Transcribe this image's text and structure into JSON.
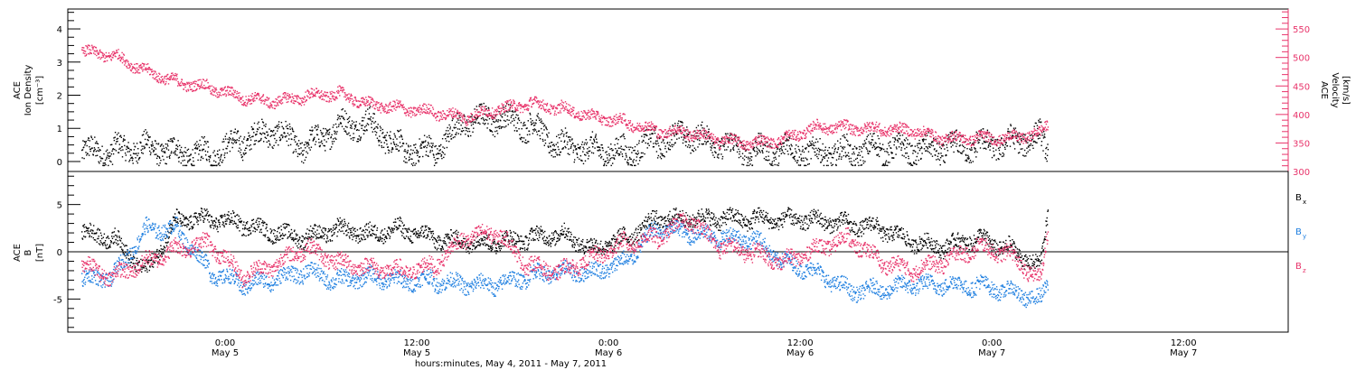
{
  "chart_data": [
    {
      "type": "scatter",
      "panel": "top",
      "ylabel_left": [
        "ACE",
        "Ion Density",
        "[cm⁻³]"
      ],
      "ylabel_right": [
        "ACE",
        "Velocity",
        "[km/s]"
      ],
      "y_left_lim": [
        -0.3,
        4.6
      ],
      "y_left_ticks": [
        "0",
        "1",
        "2",
        "3",
        "4"
      ],
      "y_right_lim": [
        300,
        585
      ],
      "y_right_ticks": [
        "300",
        "350",
        "400",
        "450",
        "500",
        "550"
      ],
      "right_axis_color": "#e8336a",
      "series": [
        {
          "axis": "left",
          "color": "#000000",
          "x_hours": [
            0,
            2,
            4,
            6,
            8,
            10,
            12,
            14,
            16,
            18,
            20,
            22,
            24,
            26,
            28,
            30,
            32,
            34,
            36,
            38,
            40,
            42,
            44,
            46,
            48,
            50,
            52,
            54,
            56,
            58,
            60,
            60.5
          ],
          "values": [
            0.25,
            0.35,
            0.5,
            0.3,
            0.2,
            0.6,
            0.9,
            0.4,
            1.1,
            1.2,
            0.4,
            0.3,
            1.2,
            1.3,
            1.1,
            0.5,
            0.4,
            0.3,
            0.6,
            0.8,
            0.5,
            0.3,
            0.4,
            0.3,
            0.3,
            0.4,
            0.3,
            0.4,
            0.5,
            0.6,
            0.8,
            0.3
          ]
        },
        {
          "axis": "right",
          "color": "#e8336a",
          "x_hours": [
            0,
            2,
            4,
            6,
            8,
            10,
            12,
            14,
            16,
            18,
            20,
            22,
            24,
            26,
            28,
            30,
            32,
            34,
            36,
            38,
            40,
            42,
            44,
            46,
            48,
            50,
            52,
            54,
            56,
            58,
            60,
            60.5
          ],
          "values": [
            510,
            505,
            478,
            458,
            448,
            430,
            422,
            432,
            438,
            420,
            412,
            405,
            395,
            408,
            420,
            412,
            398,
            388,
            372,
            368,
            355,
            350,
            358,
            380,
            378,
            375,
            372,
            358,
            360,
            360,
            368,
            388
          ]
        }
      ]
    },
    {
      "type": "scatter",
      "panel": "bottom",
      "ylabel": [
        "ACE",
        "B",
        "[nT]"
      ],
      "ylim": [
        -8.5,
        8.5
      ],
      "yticks": [
        "-5",
        "0",
        "5"
      ],
      "zero_line": true,
      "x_ticks": [
        {
          "hours": 9,
          "label": "0:00",
          "sub": "May 5"
        },
        {
          "hours": 21,
          "label": "12:00",
          "sub": "May 5"
        },
        {
          "hours": 33,
          "label": "0:00",
          "sub": "May 6"
        },
        {
          "hours": 45,
          "label": "12:00",
          "sub": "May 6"
        },
        {
          "hours": 57,
          "label": "0:00",
          "sub": "May 7"
        },
        {
          "hours": 69,
          "label": "12:00",
          "sub": "May 7"
        }
      ],
      "xlabel": "hours:minutes, May  4, 2011 - May  7, 2011",
      "series": [
        {
          "name": "Bx",
          "legend_main": "B",
          "legend_sub": "x",
          "color": "#000000",
          "x_hours": [
            0,
            2,
            4,
            6,
            8,
            10,
            12,
            14,
            16,
            18,
            20,
            22,
            24,
            26,
            28,
            30,
            32,
            34,
            36,
            38,
            40,
            42,
            44,
            46,
            48,
            50,
            52,
            54,
            56,
            58,
            60,
            60.5
          ],
          "values": [
            2.0,
            1.5,
            -2.0,
            3.5,
            3.5,
            3.0,
            2.0,
            1.5,
            2.5,
            2.0,
            2.5,
            1.5,
            1.0,
            1.0,
            1.5,
            2.0,
            0.5,
            1.5,
            3.5,
            3.5,
            3.5,
            3.5,
            3.5,
            3.5,
            3.0,
            2.5,
            1.0,
            0.5,
            1.5,
            0.5,
            -1.5,
            4.5
          ]
        },
        {
          "name": "By",
          "legend_main": "B",
          "legend_sub": "y",
          "color": "#1f7fe0",
          "x_hours": [
            0,
            2,
            4,
            6,
            8,
            10,
            12,
            14,
            16,
            18,
            20,
            22,
            24,
            26,
            28,
            30,
            32,
            34,
            36,
            38,
            40,
            42,
            44,
            46,
            48,
            50,
            52,
            54,
            56,
            58,
            60,
            60.5
          ],
          "values": [
            -3.0,
            -2.5,
            2.5,
            2.5,
            -2.0,
            -3.5,
            -3.0,
            -2.0,
            -3.0,
            -2.5,
            -3.0,
            -3.0,
            -3.5,
            -3.5,
            -2.5,
            -2.0,
            -2.0,
            -1.0,
            2.5,
            2.0,
            1.5,
            1.5,
            -1.0,
            -2.0,
            -4.0,
            -4.0,
            -3.5,
            -3.5,
            -3.5,
            -4.0,
            -5.0,
            -3.0
          ]
        },
        {
          "name": "Bz",
          "legend_main": "B",
          "legend_sub": "z",
          "color": "#e8336a",
          "x_hours": [
            0,
            2,
            4,
            6,
            8,
            10,
            12,
            14,
            16,
            18,
            20,
            22,
            24,
            26,
            28,
            30,
            32,
            34,
            36,
            38,
            40,
            42,
            44,
            46,
            48,
            50,
            52,
            54,
            56,
            58,
            60,
            60.5
          ],
          "values": [
            -1.5,
            -2.5,
            -1.0,
            0.5,
            1.0,
            -2.5,
            -1.5,
            0.5,
            -1.0,
            -1.5,
            -2.0,
            -1.5,
            1.5,
            2.0,
            -1.5,
            -2.0,
            -0.5,
            1.0,
            1.5,
            3.5,
            0.5,
            0.0,
            -1.0,
            0.5,
            1.5,
            -1.0,
            -2.0,
            -1.0,
            0.5,
            0.0,
            -3.0,
            2.5
          ]
        }
      ]
    }
  ]
}
